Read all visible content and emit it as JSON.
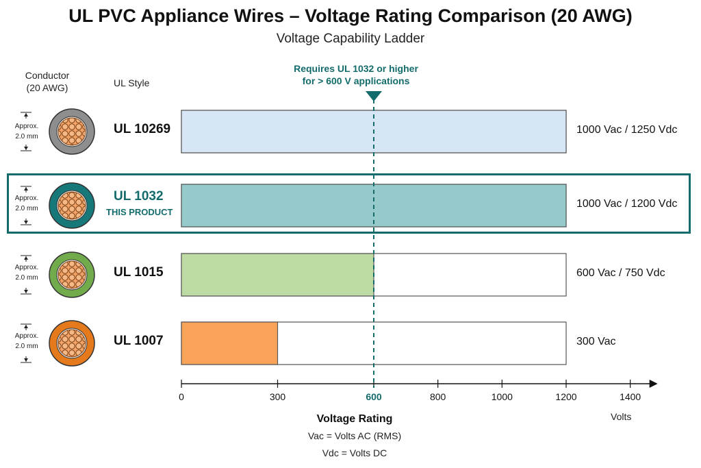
{
  "title": "UL PVC Appliance Wires – Voltage Rating Comparison (20 AWG)",
  "subtitle": "Voltage Capability Ladder",
  "columns": {
    "conductor_line1": "Conductor",
    "conductor_line2": "(20 AWG)",
    "style": "UL Style"
  },
  "threshold_note": {
    "line1": "Requires UL 1032 or higher",
    "line2": "for > 600 V applications"
  },
  "dimension": {
    "line1": "Approx.",
    "line2": "2.0 mm"
  },
  "product_tag": "THIS PRODUCT",
  "colors": {
    "teal_accent": "#136b6b",
    "bar_outline": "#555555"
  },
  "chart_data": {
    "type": "bar",
    "orientation": "horizontal",
    "title": "UL PVC Appliance Wires – Voltage Rating Comparison (20 AWG)",
    "subtitle": "Voltage Capability Ladder",
    "xlabel": "Voltage Rating",
    "x_units": "Volts",
    "xlim": [
      0,
      1200
    ],
    "axis_extends_to": 1400,
    "ticks": [
      0,
      300,
      600,
      800,
      1000,
      1200,
      1400
    ],
    "highlight_tick": 600,
    "reference_line": {
      "value": 600
    },
    "categories": [
      "UL 10269",
      "UL 1032",
      "UL 1015",
      "UL 1007"
    ],
    "values": [
      1200,
      1200,
      600,
      300
    ],
    "rating_labels": [
      "1000 Vac / 1250 Vdc",
      "1000 Vac / 1200 Vdc",
      "600 Vac / 750 Vdc",
      "300 Vac"
    ],
    "bar_colors": [
      "#d6e6f5",
      "#96c9c9",
      "#bddca4",
      "#f9a35a"
    ],
    "insulation_colors": [
      "#8e8e8e",
      "#167878",
      "#72ab4c",
      "#e57a1c"
    ],
    "highlighted": "UL 1032",
    "notes": [
      "Vac = Volts AC (RMS)",
      "Vdc = Volts DC"
    ]
  }
}
